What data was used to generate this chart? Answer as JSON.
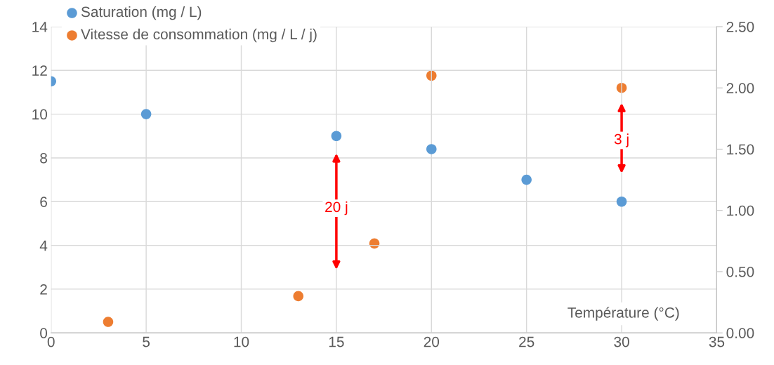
{
  "chart_data": {
    "type": "scatter",
    "xlabel": "Température (°C)",
    "x": [
      0,
      5,
      15,
      20,
      25,
      30
    ],
    "series": [
      {
        "name": "Saturation (mg / L)",
        "color": "#5b9bd5",
        "values": [
          11.5,
          10,
          9,
          8.4,
          7.0,
          6.0
        ]
      },
      {
        "name": "Vitesse de consommation (mg / L / j)",
        "color": "#ed7d31",
        "axis": "y2",
        "x": [
          3,
          13,
          17,
          20,
          30
        ],
        "values": [
          0.09,
          0.3,
          0.73,
          2.1,
          2.0
        ]
      }
    ],
    "xlim": [
      0,
      35
    ],
    "xticks": [
      0,
      5,
      10,
      15,
      20,
      25,
      30,
      35
    ],
    "ylim": [
      0,
      14
    ],
    "yticks": [
      0,
      2,
      4,
      6,
      8,
      10,
      12,
      14
    ],
    "y2lim": [
      0,
      2.5
    ],
    "y2ticks": [
      {
        "value": 0,
        "label": "0.00"
      },
      {
        "value": 0.5,
        "label": "0.50"
      },
      {
        "value": 1,
        "label": "1.00"
      },
      {
        "value": 1.5,
        "label": "1.50"
      },
      {
        "value": 2,
        "label": "2.00"
      },
      {
        "value": 2.5,
        "label": "2.50"
      }
    ],
    "annotations": [
      {
        "text": "20 j",
        "x": 15,
        "y": 5.7
      },
      {
        "text": "3 j",
        "x": 30,
        "y": 8.8
      }
    ],
    "grid": true,
    "legend": "top left",
    "marker": "circle"
  }
}
